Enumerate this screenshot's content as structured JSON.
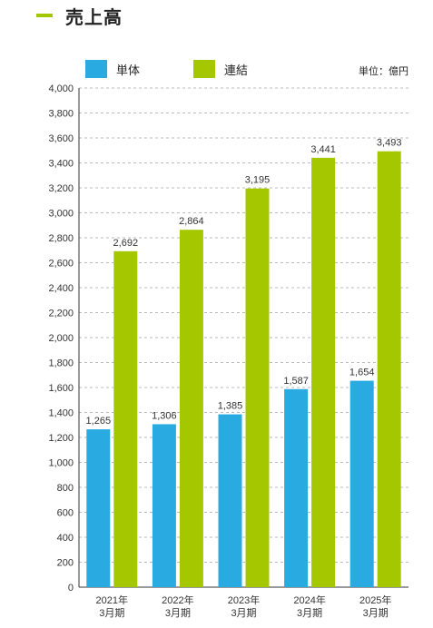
{
  "header": {
    "title": "売上高"
  },
  "unit_label": "単位：億円",
  "colors": {
    "tanntai": "#29abe2",
    "renketsu": "#a4c700",
    "accent": "#a4c700"
  },
  "chart_data": {
    "type": "bar",
    "title": "売上高",
    "categories": [
      [
        "2021年",
        "3月期"
      ],
      [
        "2022年",
        "3月期"
      ],
      [
        "2023年",
        "3月期"
      ],
      [
        "2024年",
        "3月期"
      ],
      [
        "2025年",
        "3月期"
      ]
    ],
    "series": [
      {
        "name": "単体",
        "color": "#29abe2",
        "values": [
          1265,
          1306,
          1385,
          1587,
          1654
        ],
        "labels": [
          "1,265",
          "1,306",
          "1,385",
          "1,587",
          "1,654"
        ]
      },
      {
        "name": "連結",
        "color": "#a4c700",
        "values": [
          2692,
          2864,
          3195,
          3441,
          3493
        ],
        "labels": [
          "2,692",
          "2,864",
          "3,195",
          "3,441",
          "3,493"
        ]
      }
    ],
    "ylim": [
      0,
      4000
    ],
    "yticks": [
      "0",
      "200",
      "400",
      "600",
      "800",
      "1,000",
      "1,200",
      "1,400",
      "1,600",
      "1,800",
      "2,000",
      "2,200",
      "2,400",
      "2,600",
      "2,800",
      "3,000",
      "3,200",
      "3,400",
      "3,600",
      "3,800",
      "4,000"
    ],
    "ytick_step": 200,
    "grid": true,
    "legend": "top"
  }
}
